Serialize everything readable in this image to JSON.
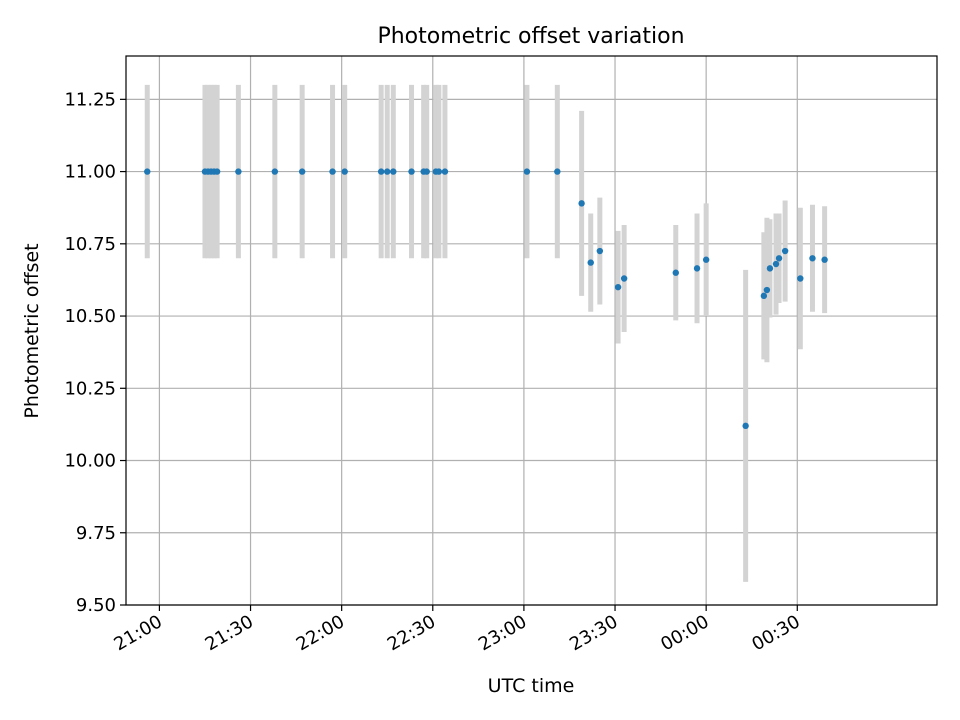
{
  "chart_data": {
    "type": "scatter",
    "title": "Photometric offset variation",
    "xlabel": "UTC time",
    "ylabel": "Photometric offset",
    "xlim": [
      "20:49",
      "01:16"
    ],
    "ylim": [
      9.5,
      11.4
    ],
    "grid": true,
    "x_ticks": [
      "21:00",
      "21:30",
      "22:00",
      "22:30",
      "23:00",
      "23:30",
      "00:00",
      "00:30"
    ],
    "y_ticks": [
      9.5,
      9.75,
      10.0,
      10.25,
      10.5,
      10.75,
      11.0,
      11.25
    ],
    "y_tick_labels": [
      "9.50",
      "9.75",
      "10.00",
      "10.25",
      "10.50",
      "10.75",
      "11.00",
      "11.25"
    ],
    "colors": {
      "points": "#1f77b4",
      "errorbars": "#d3d3d3",
      "grid": "#b0b0b0"
    },
    "points": [
      {
        "t": "20:56",
        "y": 11.0,
        "err": 0.3
      },
      {
        "t": "21:15",
        "y": 11.0,
        "err": 0.3
      },
      {
        "t": "21:16",
        "y": 11.0,
        "err": 0.3
      },
      {
        "t": "21:17",
        "y": 11.0,
        "err": 0.3
      },
      {
        "t": "21:18",
        "y": 11.0,
        "err": 0.3
      },
      {
        "t": "21:19",
        "y": 11.0,
        "err": 0.3
      },
      {
        "t": "21:26",
        "y": 11.0,
        "err": 0.3
      },
      {
        "t": "21:38",
        "y": 11.0,
        "err": 0.3
      },
      {
        "t": "21:47",
        "y": 11.0,
        "err": 0.3
      },
      {
        "t": "21:57",
        "y": 11.0,
        "err": 0.3
      },
      {
        "t": "22:01",
        "y": 11.0,
        "err": 0.3
      },
      {
        "t": "22:13",
        "y": 11.0,
        "err": 0.3
      },
      {
        "t": "22:15",
        "y": 11.0,
        "err": 0.3
      },
      {
        "t": "22:17",
        "y": 11.0,
        "err": 0.3
      },
      {
        "t": "22:23",
        "y": 11.0,
        "err": 0.3
      },
      {
        "t": "22:27",
        "y": 11.0,
        "err": 0.3
      },
      {
        "t": "22:28",
        "y": 11.0,
        "err": 0.3
      },
      {
        "t": "22:31",
        "y": 11.0,
        "err": 0.3
      },
      {
        "t": "22:32",
        "y": 11.0,
        "err": 0.3
      },
      {
        "t": "22:34",
        "y": 11.0,
        "err": 0.3
      },
      {
        "t": "23:01",
        "y": 11.0,
        "err": 0.3
      },
      {
        "t": "23:11",
        "y": 11.0,
        "err": 0.3
      },
      {
        "t": "23:19",
        "y": 10.89,
        "err": 0.32
      },
      {
        "t": "23:22",
        "y": 10.685,
        "err": 0.17
      },
      {
        "t": "23:25",
        "y": 10.725,
        "err": 0.185
      },
      {
        "t": "23:31",
        "y": 10.6,
        "err": 0.195
      },
      {
        "t": "23:33",
        "y": 10.63,
        "err": 0.185
      },
      {
        "t": "23:50",
        "y": 10.65,
        "err": 0.165
      },
      {
        "t": "23:57",
        "y": 10.665,
        "err": 0.19
      },
      {
        "t": "24:00",
        "y": 10.695,
        "err": 0.195
      },
      {
        "t": "24:13",
        "y": 10.12,
        "err": 0.54
      },
      {
        "t": "24:19",
        "y": 10.57,
        "err": 0.22
      },
      {
        "t": "24:20",
        "y": 10.59,
        "err": 0.25
      },
      {
        "t": "24:21",
        "y": 10.665,
        "err": 0.17
      },
      {
        "t": "24:23",
        "y": 10.68,
        "err": 0.175
      },
      {
        "t": "24:24",
        "y": 10.7,
        "err": 0.155
      },
      {
        "t": "24:26",
        "y": 10.725,
        "err": 0.175
      },
      {
        "t": "24:31",
        "y": 10.63,
        "err": 0.245
      },
      {
        "t": "24:35",
        "y": 10.7,
        "err": 0.185
      },
      {
        "t": "24:39",
        "y": 10.695,
        "err": 0.185
      }
    ]
  }
}
